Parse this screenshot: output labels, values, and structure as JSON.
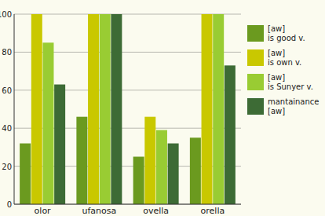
{
  "chart_data": {
    "type": "bar",
    "categories": [
      "olor",
      "ufanosa",
      "ovella",
      "orella"
    ],
    "series": [
      {
        "name": "[aw] is good v.",
        "color": "#6b9a1f",
        "values": [
          32,
          46,
          25,
          35
        ]
      },
      {
        "name": "[aw] is own v.",
        "color": "#c9c800",
        "values": [
          100,
          100,
          46,
          100
        ]
      },
      {
        "name": "[aw] is Sunyer v.",
        "color": "#99cc33",
        "values": [
          85,
          100,
          39,
          100
        ]
      },
      {
        "name": "mantainance [aw]",
        "color": "#3d6b35",
        "values": [
          63,
          100,
          32,
          73
        ]
      }
    ],
    "ylim": [
      0,
      100
    ],
    "yticks": [
      0,
      20,
      40,
      60,
      80,
      100
    ],
    "grid": true,
    "legend": "right"
  }
}
